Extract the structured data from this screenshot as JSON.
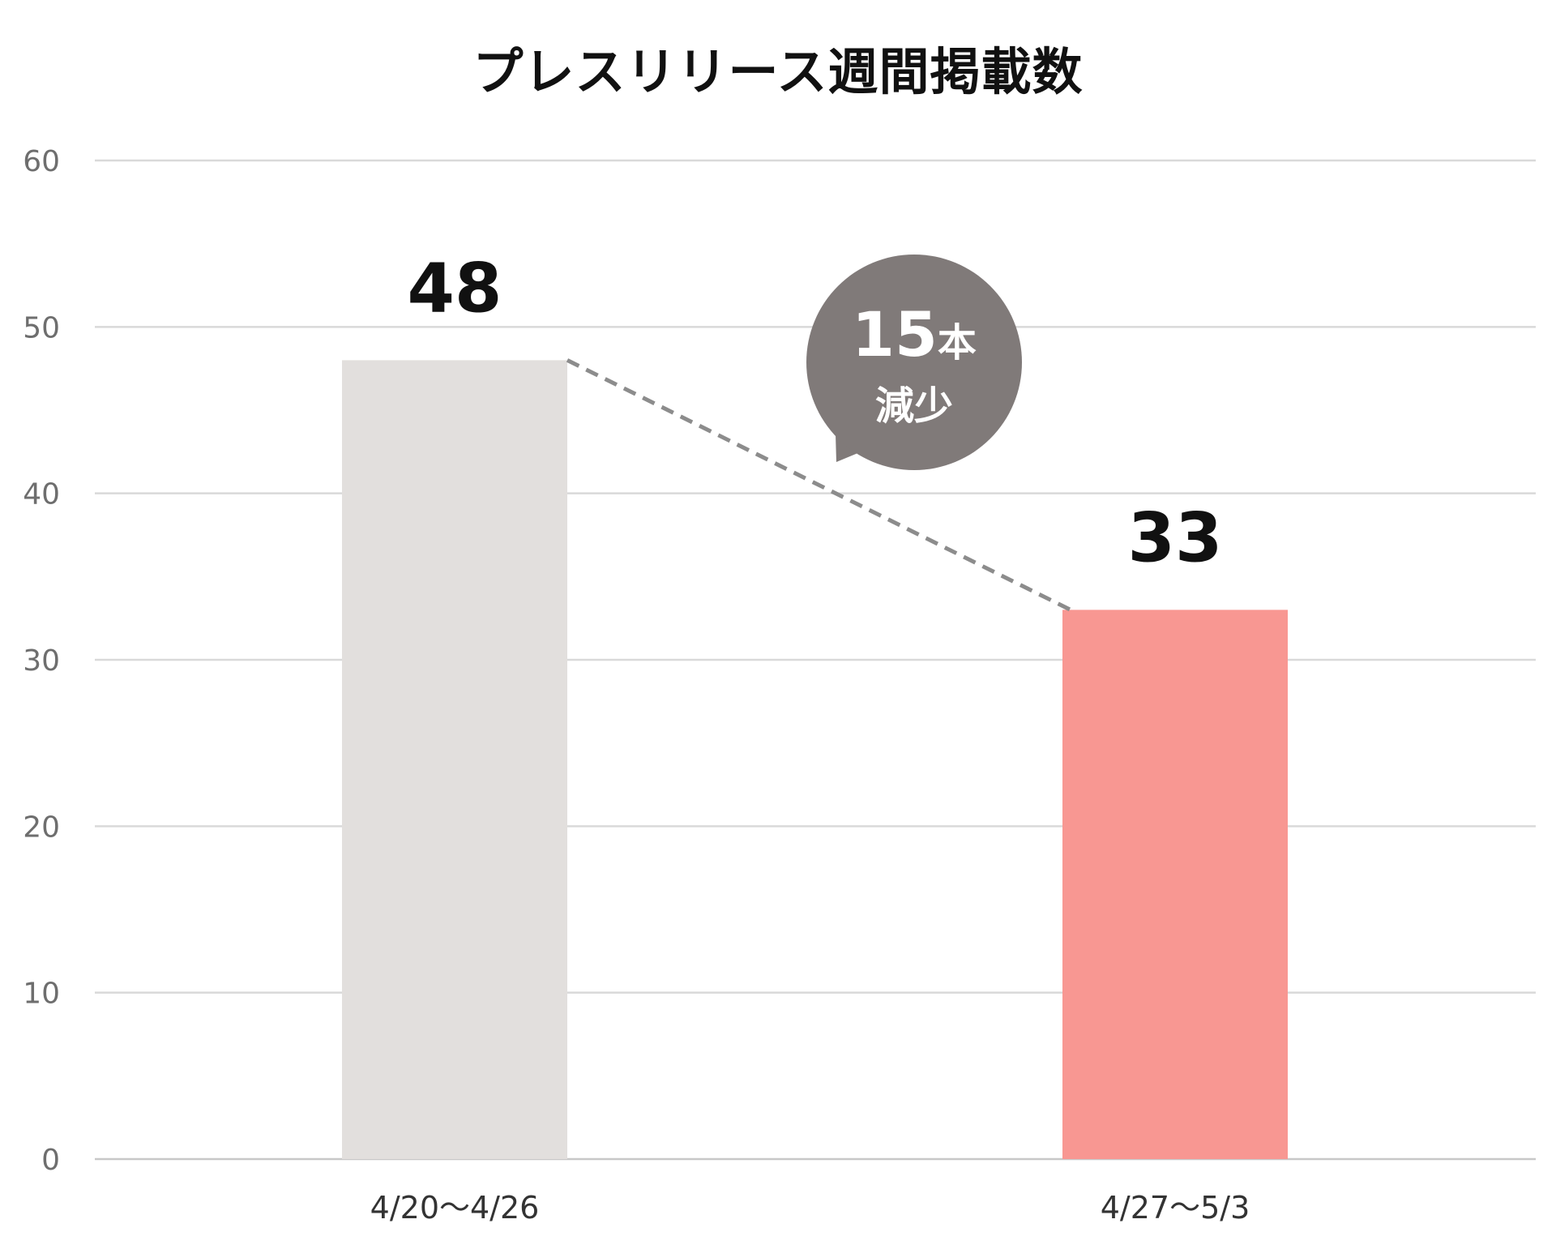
{
  "chart_data": {
    "type": "bar",
    "title": "プレスリリース週間掲載数",
    "categories": [
      "4/20～4/26",
      "4/27～5/3"
    ],
    "values": [
      48,
      33
    ],
    "data_labels": [
      "48",
      "33"
    ],
    "bar_colors": [
      "#e2dfdd",
      "#f89792"
    ],
    "xlabel": "",
    "ylabel": "",
    "ylim": [
      0,
      60
    ],
    "yticks": [
      0,
      10,
      20,
      30,
      40,
      50,
      60
    ],
    "grid": true,
    "grid_color": "#d9d9d9",
    "legend": "none",
    "annotation": {
      "number": "15",
      "unit": "本",
      "text": "減少",
      "color": "#807a79",
      "connector": "dashed line from top of first bar to top of second bar"
    }
  }
}
